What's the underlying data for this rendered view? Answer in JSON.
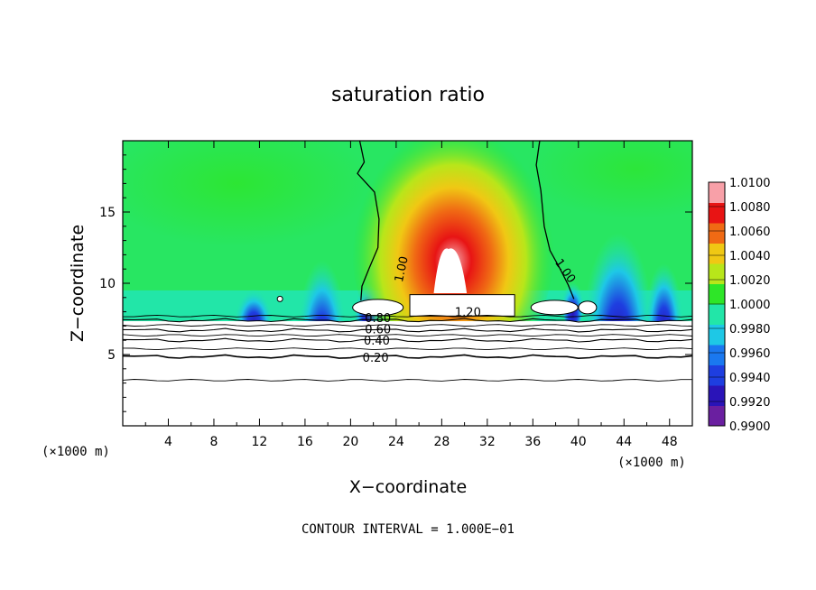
{
  "chart_data": {
    "type": "heatmap",
    "title": "saturation ratio",
    "xlabel": "X−coordinate",
    "ylabel": "Z−coordinate",
    "x_unit_note": "(×1000 m)",
    "y_unit_note": "(×1000 m)",
    "footer": "CONTOUR INTERVAL = 1.000E−01",
    "xlim": [
      0,
      50
    ],
    "ylim": [
      0,
      20
    ],
    "x_ticks": [
      4,
      8,
      12,
      16,
      20,
      24,
      28,
      32,
      36,
      40,
      44,
      48
    ],
    "x_tick_labels": [
      "4",
      "8",
      "12",
      "16",
      "20",
      "24",
      "28",
      "32",
      "36",
      "40",
      "44",
      "48"
    ],
    "y_ticks": [
      5,
      10,
      15
    ],
    "y_tick_labels": [
      "5",
      "10",
      "15"
    ],
    "colorbar": {
      "min": 0.99,
      "max": 1.01,
      "levels": [
        0.99,
        0.992,
        0.994,
        0.996,
        0.998,
        1.0,
        1.002,
        1.004,
        1.006,
        1.008,
        1.01
      ],
      "tick_labels": [
        "0.9900",
        "0.9920",
        "0.9940",
        "0.9960",
        "0.9980",
        "1.0000",
        "1.0020",
        "1.0040",
        "1.0060",
        "1.0080",
        "1.0100"
      ],
      "colors": [
        "#6a1fa0",
        "#2a14b8",
        "#1e3ee0",
        "#1a78f0",
        "#1ec8e6",
        "#22e6a8",
        "#2ee628",
        "#b8e61a",
        "#f0c814",
        "#f06a14",
        "#e81414",
        "#f8a0a8"
      ]
    },
    "contour_labels": [
      {
        "text": "0.20",
        "x": 22.2,
        "y": 4.8
      },
      {
        "text": "0.40",
        "x": 22.3,
        "y": 6.0
      },
      {
        "text": "0.60",
        "x": 22.4,
        "y": 6.8
      },
      {
        "text": "0.80",
        "x": 22.4,
        "y": 7.6
      },
      {
        "text": "1.20",
        "x": 30.3,
        "y": 8.0
      },
      {
        "text": "1.00",
        "x": 24.4,
        "y": 11.0
      },
      {
        "text": "1.00",
        "x": 38.9,
        "y": 10.9
      }
    ],
    "contour_levels_below_cloud_base": [
      0.2,
      0.4,
      0.6,
      0.8
    ],
    "field_features": {
      "background_value": 1.0,
      "max_core_center": {
        "x": 29.0,
        "z": 12.0,
        "value": 1.01
      },
      "dry_regions_near_z": 9,
      "cloud_base_z": 7.7
    },
    "grid": false,
    "legend": "colorbar-right"
  }
}
